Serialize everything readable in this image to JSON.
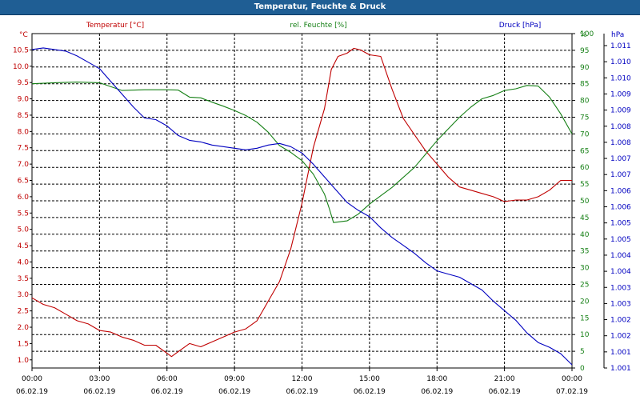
{
  "window": {
    "title": "Temperatur, Feuchte & Druck"
  },
  "colors": {
    "temperature": "#c00000",
    "humidity": "#168016",
    "pressure": "#0000c0",
    "grid": "#000000",
    "axis": "#000000"
  },
  "chart_data": {
    "type": "line",
    "title": "Temperatur, Feuchte & Druck",
    "x_axis": {
      "ticks": [
        "00:00",
        "03:00",
        "06:00",
        "09:00",
        "12:00",
        "15:00",
        "18:00",
        "21:00",
        "00:00"
      ],
      "dates": [
        "06.02.19",
        "06.02.19",
        "06.02.19",
        "06.02.19",
        "06.02.19",
        "06.02.19",
        "06.02.19",
        "06.02.19",
        "07.02.19"
      ],
      "range_hours": [
        0,
        24
      ]
    },
    "axes": {
      "temperature": {
        "label": "Temperatur [°C]",
        "unit": "°C",
        "min": 0.75,
        "max": 11.0,
        "ticks": [
          "1.0",
          "1.5",
          "2.0",
          "2.5",
          "3.0",
          "3.5",
          "4.0",
          "4.5",
          "5.0",
          "5.5",
          "6.0",
          "6.5",
          "7.0",
          "7.5",
          "8.0",
          "8.5",
          "9.0",
          "9.5",
          "10.0",
          "10.5"
        ]
      },
      "humidity": {
        "label": "rel. Feuchte [%]",
        "unit": "%",
        "min": 0,
        "max": 100,
        "ticks": [
          "0",
          "5",
          "10",
          "15",
          "20",
          "25",
          "30",
          "35",
          "40",
          "45",
          "50",
          "55",
          "60",
          "65",
          "70",
          "75",
          "80",
          "85",
          "90",
          "95",
          "100"
        ]
      },
      "pressure": {
        "label": "Druck [hPa]",
        "unit": "hPa",
        "min": 1001.0,
        "max": 1011.5,
        "ticks": [
          "1.001",
          "1.001",
          "1.002",
          "1.002",
          "1.003",
          "1.003",
          "1.004",
          "1.004",
          "1.005",
          "1.005",
          "1.006",
          "1.006",
          "1.007",
          "1.007",
          "1.008",
          "1.008",
          "1.009",
          "1.009",
          "1.010",
          "1.010",
          "1.011"
        ]
      }
    },
    "series": [
      {
        "name": "Temperatur [°C]",
        "axis": "temperature",
        "x": [
          0,
          0.5,
          1,
          1.5,
          2,
          2.5,
          3,
          3.5,
          4,
          4.5,
          5,
          5.5,
          6,
          6.2,
          6.5,
          7,
          7.5,
          8,
          8.5,
          9,
          9.5,
          10,
          10.5,
          11,
          11.5,
          12,
          12.5,
          13,
          13.3,
          13.6,
          14,
          14.3,
          14.6,
          15,
          15.5,
          16,
          16.5,
          17,
          17.5,
          18,
          18.5,
          19,
          19.5,
          20,
          20.5,
          21,
          21.5,
          22,
          22.5,
          23,
          23.5,
          24
        ],
        "values": [
          2.9,
          2.7,
          2.6,
          2.4,
          2.2,
          2.1,
          1.9,
          1.85,
          1.7,
          1.6,
          1.45,
          1.45,
          1.2,
          1.1,
          1.25,
          1.5,
          1.4,
          1.55,
          1.7,
          1.85,
          1.95,
          2.2,
          2.8,
          3.4,
          4.4,
          5.8,
          7.5,
          8.7,
          9.9,
          10.3,
          10.4,
          10.55,
          10.5,
          10.35,
          10.3,
          9.3,
          8.4,
          7.9,
          7.4,
          7.0,
          6.6,
          6.3,
          6.2,
          6.1,
          6.0,
          5.85,
          5.9,
          5.9,
          6.0,
          6.2,
          6.5,
          6.5
        ]
      },
      {
        "name": "rel. Feuchte [%]",
        "axis": "humidity",
        "x": [
          0,
          1,
          2,
          3,
          4,
          5,
          6,
          6.5,
          7,
          7.5,
          8,
          8.5,
          9,
          9.5,
          10,
          10.5,
          11,
          11.5,
          12,
          12.5,
          13,
          13.2,
          13.4,
          14,
          14.5,
          15,
          15.5,
          16,
          16.5,
          17,
          17.5,
          18,
          18.5,
          19,
          19.5,
          20,
          20.5,
          21,
          21.5,
          22,
          22.5,
          23,
          23.5,
          24
        ],
        "values": [
          85,
          85.3,
          85.5,
          85.3,
          83,
          83.2,
          83.2,
          83.1,
          81,
          80.8,
          79.5,
          78.3,
          77,
          75.5,
          73.5,
          70.5,
          66.5,
          64.5,
          62,
          58,
          52,
          48,
          43.5,
          44,
          46,
          49,
          51.5,
          54,
          57,
          60,
          64,
          68,
          71.5,
          75,
          78,
          80.5,
          81.5,
          83,
          83.5,
          84.5,
          84.3,
          81,
          76,
          70
        ]
      },
      {
        "name": "Druck [hPa]",
        "axis": "pressure",
        "x": [
          0,
          0.5,
          1,
          1.5,
          2,
          2.5,
          3,
          3.5,
          4,
          4.5,
          5,
          5.5,
          6,
          6.5,
          7,
          7.5,
          8,
          8.5,
          9,
          9.5,
          10,
          10.5,
          11,
          11.5,
          12,
          12.5,
          13,
          13.5,
          14,
          14.5,
          15,
          15.5,
          16,
          16.5,
          17,
          17.5,
          18,
          18.5,
          19,
          19.5,
          20,
          20.5,
          21,
          21.5,
          22,
          22.5,
          23,
          23.5,
          24
        ],
        "values": [
          1011.0,
          1011.05,
          1011.0,
          1010.95,
          1010.8,
          1010.6,
          1010.4,
          1010.0,
          1009.6,
          1009.2,
          1008.85,
          1008.8,
          1008.6,
          1008.3,
          1008.15,
          1008.1,
          1008.0,
          1007.95,
          1007.9,
          1007.85,
          1007.9,
          1008.0,
          1008.05,
          1007.95,
          1007.75,
          1007.4,
          1007.0,
          1006.6,
          1006.2,
          1005.95,
          1005.75,
          1005.4,
          1005.1,
          1004.85,
          1004.6,
          1004.3,
          1004.05,
          1003.95,
          1003.85,
          1003.65,
          1003.45,
          1003.1,
          1002.8,
          1002.5,
          1002.1,
          1001.8,
          1001.65,
          1001.45,
          1001.1
        ]
      }
    ]
  }
}
